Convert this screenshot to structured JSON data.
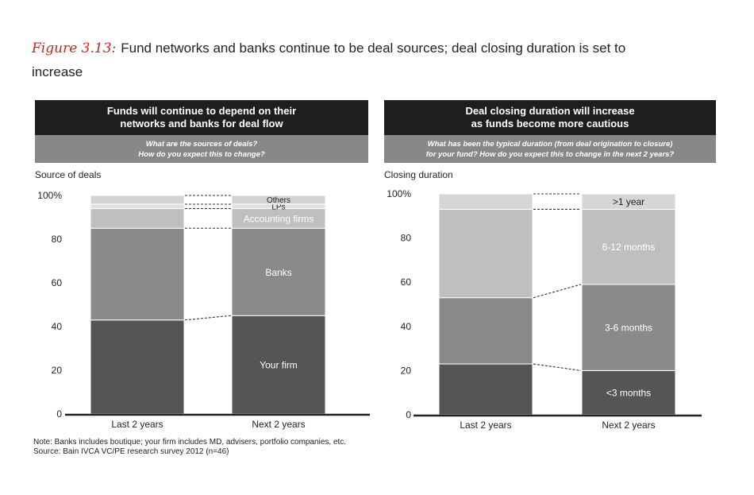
{
  "figure": {
    "label": "Figure 3.13:",
    "title": "Fund networks and banks continue to be deal sources; deal closing duration is set to increase"
  },
  "chart_data": [
    {
      "type": "bar",
      "stacked": true,
      "header": {
        "line1": "Funds will continue to depend on their",
        "line2": "networks and banks for deal flow"
      },
      "question": {
        "line1": "What are the sources of deals?",
        "line2": "How do you expect this to change?"
      },
      "ylabel": "Source of deals",
      "ylim": [
        0,
        100
      ],
      "yticks": [
        "100%",
        "80",
        "60",
        "40",
        "20",
        "0"
      ],
      "categories": [
        "Last 2 years",
        "Next 2 years"
      ],
      "series": [
        {
          "name": "Your firm",
          "values": [
            43,
            45
          ],
          "color": "#555555",
          "label_color": "#ffffff"
        },
        {
          "name": "Banks",
          "values": [
            42,
            40
          ],
          "color": "#8a8a8a",
          "label_color": "#ffffff"
        },
        {
          "name": "Accounting firms",
          "values": [
            9,
            9
          ],
          "color": "#bfbfbf",
          "label_color": "#ffffff"
        },
        {
          "name": "LPs",
          "values": [
            2,
            2
          ],
          "color": "#e0e0e0",
          "label_color": "#222222"
        },
        {
          "name": "Others",
          "values": [
            4,
            4
          ],
          "color": "#d3d3d3",
          "label_color": "#222222"
        }
      ]
    },
    {
      "type": "bar",
      "stacked": true,
      "header": {
        "line1": "Deal closing duration will increase",
        "line2": "as funds become more cautious"
      },
      "question": {
        "line1": "What has been the typical duration (from deal origination to closure)",
        "line2": "for your fund?  How do you expect this to change in the next 2 years?"
      },
      "ylabel": "Closing duration",
      "ylim": [
        0,
        100
      ],
      "yticks": [
        "100%",
        "80",
        "60",
        "40",
        "20",
        "0"
      ],
      "categories": [
        "Last 2 years",
        "Next 2 years"
      ],
      "series": [
        {
          "name": "<3 months",
          "values": [
            23,
            20
          ],
          "color": "#555555",
          "label_color": "#ffffff"
        },
        {
          "name": "3-6 months",
          "values": [
            30,
            39
          ],
          "color": "#8a8a8a",
          "label_color": "#ffffff"
        },
        {
          "name": "6-12 months",
          "values": [
            40,
            34
          ],
          "color": "#bfbfbf",
          "label_color": "#ffffff"
        },
        {
          "name": ">1 year",
          "values": [
            7,
            7
          ],
          "color": "#d6d6d6",
          "label_color": "#222222"
        }
      ]
    }
  ],
  "notes": {
    "line1": "Note: Banks includes boutique; your firm includes MD, advisers, portfolio companies, etc.",
    "line2": "Source: Bain IVCA VC/PE research survey 2012 (n=46)"
  }
}
